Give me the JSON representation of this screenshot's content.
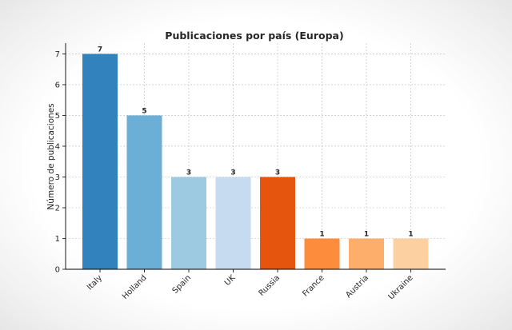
{
  "chart_data": {
    "type": "bar",
    "title": "Publicaciones por país (Europa)",
    "xlabel": "",
    "ylabel": "Número de publicaciones",
    "categories": [
      "Italy",
      "Holland",
      "Spain",
      "UK",
      "Russia",
      "France",
      "Austria",
      "Ukraine"
    ],
    "values": [
      7,
      5,
      3,
      3,
      3,
      1,
      1,
      1
    ],
    "colors": [
      "#3182bd",
      "#6baed6",
      "#9ecae1",
      "#c6dbef",
      "#e6550d",
      "#fd8d3c",
      "#fdae6b",
      "#fdd0a2"
    ],
    "ylim": [
      0,
      7.35
    ],
    "yticks": [
      0,
      1,
      2,
      3,
      4,
      5,
      6,
      7
    ],
    "grid": true,
    "data_labels": true
  }
}
